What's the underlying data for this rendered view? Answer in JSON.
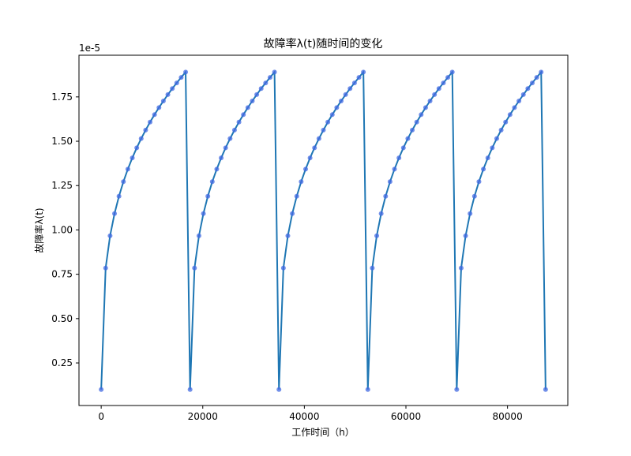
{
  "chart_data": {
    "type": "line",
    "title": "故障率λ(t)随时间的变化",
    "xlabel": "工作时间（h）",
    "ylabel": "故障率λ(t)",
    "y_offset_label": "1e-5",
    "xlim": [
      -4375,
      91875
    ],
    "ylim": [
      1e-07,
      1.985e-05
    ],
    "x_ticks": [
      0,
      20000,
      40000,
      60000,
      80000
    ],
    "x_tick_labels": [
      "0",
      "20000",
      "40000",
      "60000",
      "80000"
    ],
    "y_ticks": [
      2.5e-06,
      5e-06,
      7.5e-06,
      1e-05,
      1.25e-05,
      1.5e-05,
      1.75e-05
    ],
    "y_tick_labels": [
      "0.25",
      "0.50",
      "0.75",
      "1.00",
      "1.25",
      "1.50",
      "1.75"
    ],
    "grid": false,
    "line_color": "#1f77b4",
    "marker_color": "#4169e1",
    "x": [
      0,
      875,
      1750,
      2625,
      3500,
      4375,
      5250,
      6125,
      7000,
      7875,
      8750,
      9625,
      10500,
      11375,
      12250,
      13125,
      14000,
      14875,
      15750,
      16625,
      17500,
      18375,
      19250,
      20125,
      21000,
      21875,
      22750,
      23625,
      24500,
      25375,
      26250,
      27125,
      28000,
      28875,
      29750,
      30625,
      31500,
      32375,
      33250,
      34125,
      35000,
      35875,
      36750,
      37625,
      38500,
      39375,
      40250,
      41125,
      42000,
      42875,
      43750,
      44625,
      45500,
      46375,
      47250,
      48125,
      49000,
      49875,
      50750,
      51625,
      52500,
      53375,
      54250,
      55125,
      56000,
      56875,
      57750,
      58625,
      59500,
      60375,
      61250,
      62125,
      63000,
      63875,
      64750,
      65625,
      66500,
      67375,
      68250,
      69125,
      70000,
      70875,
      71750,
      72625,
      73500,
      74375,
      75250,
      76125,
      77000,
      77875,
      78750,
      79625,
      80500,
      81375,
      82250,
      83125,
      84000,
      84875,
      85750,
      86625,
      87500
    ],
    "y": [
      1e-06,
      7.85e-06,
      9.67e-06,
      1.092e-05,
      1.19e-05,
      1.272e-05,
      1.343e-05,
      1.406e-05,
      1.463e-05,
      1.515e-05,
      1.563e-05,
      1.608e-05,
      1.65e-05,
      1.69e-05,
      1.727e-05,
      1.763e-05,
      1.797e-05,
      1.829e-05,
      1.86e-05,
      1.89e-05,
      1e-06,
      7.85e-06,
      9.67e-06,
      1.092e-05,
      1.19e-05,
      1.272e-05,
      1.343e-05,
      1.406e-05,
      1.463e-05,
      1.515e-05,
      1.563e-05,
      1.608e-05,
      1.65e-05,
      1.69e-05,
      1.727e-05,
      1.763e-05,
      1.797e-05,
      1.829e-05,
      1.86e-05,
      1.89e-05,
      1e-06,
      7.85e-06,
      9.67e-06,
      1.092e-05,
      1.19e-05,
      1.272e-05,
      1.343e-05,
      1.406e-05,
      1.463e-05,
      1.515e-05,
      1.563e-05,
      1.608e-05,
      1.65e-05,
      1.69e-05,
      1.727e-05,
      1.763e-05,
      1.797e-05,
      1.829e-05,
      1.86e-05,
      1.89e-05,
      1e-06,
      7.85e-06,
      9.67e-06,
      1.092e-05,
      1.19e-05,
      1.272e-05,
      1.343e-05,
      1.406e-05,
      1.463e-05,
      1.515e-05,
      1.563e-05,
      1.608e-05,
      1.65e-05,
      1.69e-05,
      1.727e-05,
      1.763e-05,
      1.797e-05,
      1.829e-05,
      1.86e-05,
      1.89e-05,
      1e-06,
      7.85e-06,
      9.67e-06,
      1.092e-05,
      1.19e-05,
      1.272e-05,
      1.343e-05,
      1.406e-05,
      1.463e-05,
      1.515e-05,
      1.563e-05,
      1.608e-05,
      1.65e-05,
      1.69e-05,
      1.727e-05,
      1.763e-05,
      1.797e-05,
      1.829e-05,
      1.86e-05,
      1.89e-05,
      1e-06
    ]
  }
}
